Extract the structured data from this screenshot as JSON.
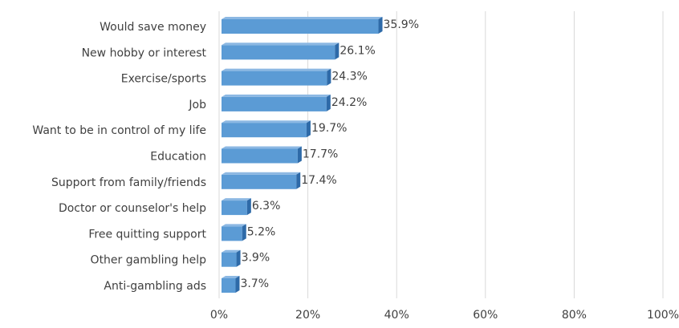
{
  "chart_data": {
    "type": "bar",
    "orientation": "horizontal",
    "bar_style": "3d",
    "categories": [
      "Would save money",
      "New hobby or interest",
      "Exercise/sports",
      "Job",
      "Want to be in control of my life",
      "Education",
      "Support from family/friends",
      "Doctor or counselor's help",
      "Free quitting support",
      "Other gambling help",
      "Anti-gambling ads"
    ],
    "values": [
      35.9,
      26.1,
      24.3,
      24.2,
      19.7,
      17.7,
      17.4,
      6.3,
      5.2,
      3.9,
      3.7
    ],
    "data_labels": [
      "35.9%",
      "26.1%",
      "24.3%",
      "24.2%",
      "19.7%",
      "17.7%",
      "17.4%",
      "6.3%",
      "5.2%",
      "3.9%",
      "3.7%"
    ],
    "x_ticks": [
      0,
      20,
      40,
      60,
      80,
      100
    ],
    "x_tick_labels": [
      "0%",
      "20%",
      "40%",
      "60%",
      "80%",
      "100%"
    ],
    "xlim": [
      0,
      100
    ],
    "grid": true,
    "legend": "none",
    "title": "",
    "xlabel": "",
    "ylabel": "",
    "colors": {
      "bar_front": "#5b9bd5",
      "bar_side": "#2e6aa8",
      "bar_top": "#8cb8e3",
      "gridline": "#d9d9d9",
      "text": "#404040"
    }
  }
}
